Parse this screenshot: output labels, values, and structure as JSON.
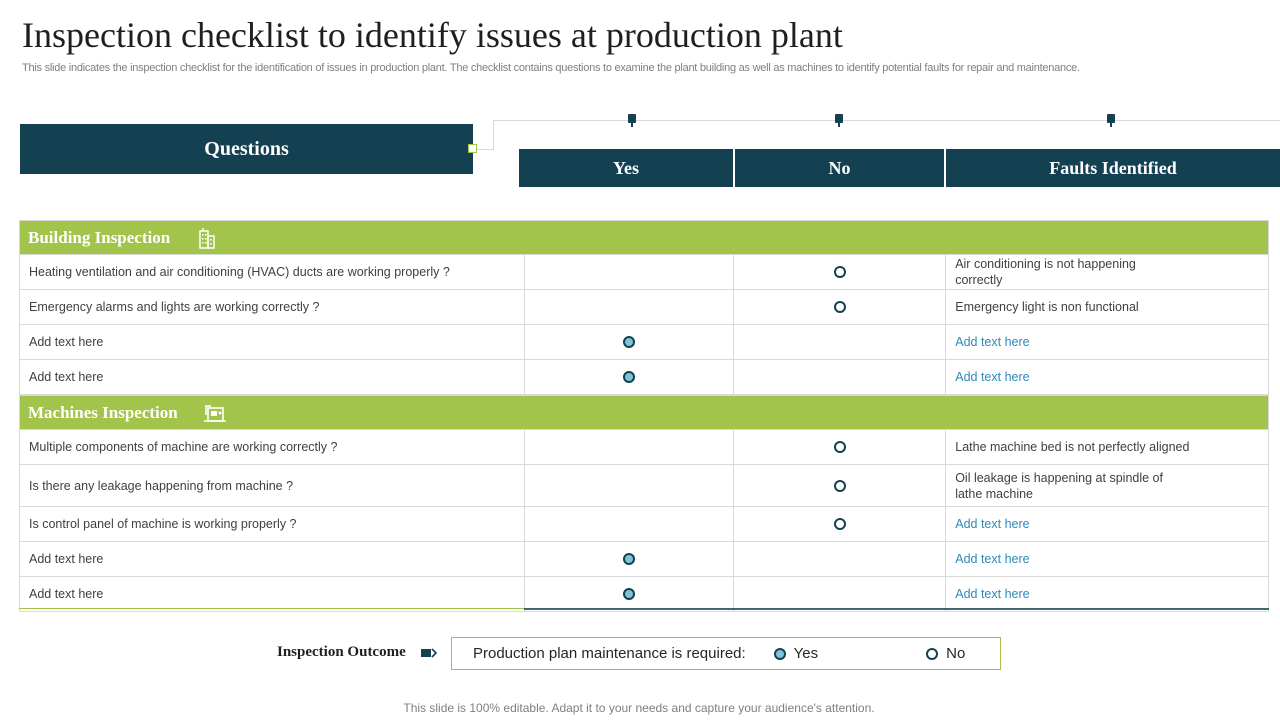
{
  "title": "Inspection checklist to identify issues at production plant",
  "subtitle": "This slide indicates the inspection checklist for the identification of issues in production plant. The checklist contains questions to examine the plant building as well as machines to identify potential faults for repair and maintenance.",
  "headers": {
    "questions": "Questions",
    "yes": "Yes",
    "no": "No",
    "faults": "Faults Identified"
  },
  "sections": [
    {
      "title": "Building Inspection",
      "icon": "building-icon",
      "rows": [
        {
          "question": "Heating ventilation  and air conditioning (HVAC) ducts are working properly  ?",
          "answer": "no",
          "fault": "Air conditioning is not happening correctly",
          "fault_is_placeholder": false
        },
        {
          "question": "Emergency alarms and lights are working correctly ?",
          "answer": "no",
          "fault": "Emergency light is non functional",
          "fault_is_placeholder": false
        },
        {
          "question": "Add text here",
          "answer": "yes",
          "fault": "Add text here",
          "fault_is_placeholder": true
        },
        {
          "question": "Add text here",
          "answer": "yes",
          "fault": "Add text here",
          "fault_is_placeholder": true
        }
      ]
    },
    {
      "title": "Machines Inspection",
      "icon": "machine-icon",
      "rows": [
        {
          "question": "Multiple components of machine are working correctly ?",
          "answer": "no",
          "fault": "Lathe machine bed is not perfectly aligned",
          "fault_is_placeholder": false
        },
        {
          "question": "Is there any leakage happening from machine ?",
          "answer": "no",
          "fault": "Oil leakage is happening  at spindle of lathe machine",
          "fault_is_placeholder": false
        },
        {
          "question": "Is control panel of machine is working  properly ?",
          "answer": "no",
          "fault": "Add text here",
          "fault_is_placeholder": true
        },
        {
          "question": "Add text here",
          "answer": "yes",
          "fault": "Add text here",
          "fault_is_placeholder": true
        },
        {
          "question": "Add text here",
          "answer": "yes",
          "fault": "Add text here",
          "fault_is_placeholder": true
        }
      ]
    }
  ],
  "outcome": {
    "label": "Inspection Outcome",
    "question": "Production plan maintenance is required:",
    "yes_label": "Yes",
    "no_label": "No",
    "selected": "yes"
  },
  "footer": "This slide is 100% editable. Adapt it to your needs and capture your audience's attention.",
  "colors": {
    "dark_teal": "#134152",
    "green": "#a3c44a",
    "link": "#2e8ab8",
    "radio_fill": "#7fc3d6"
  }
}
